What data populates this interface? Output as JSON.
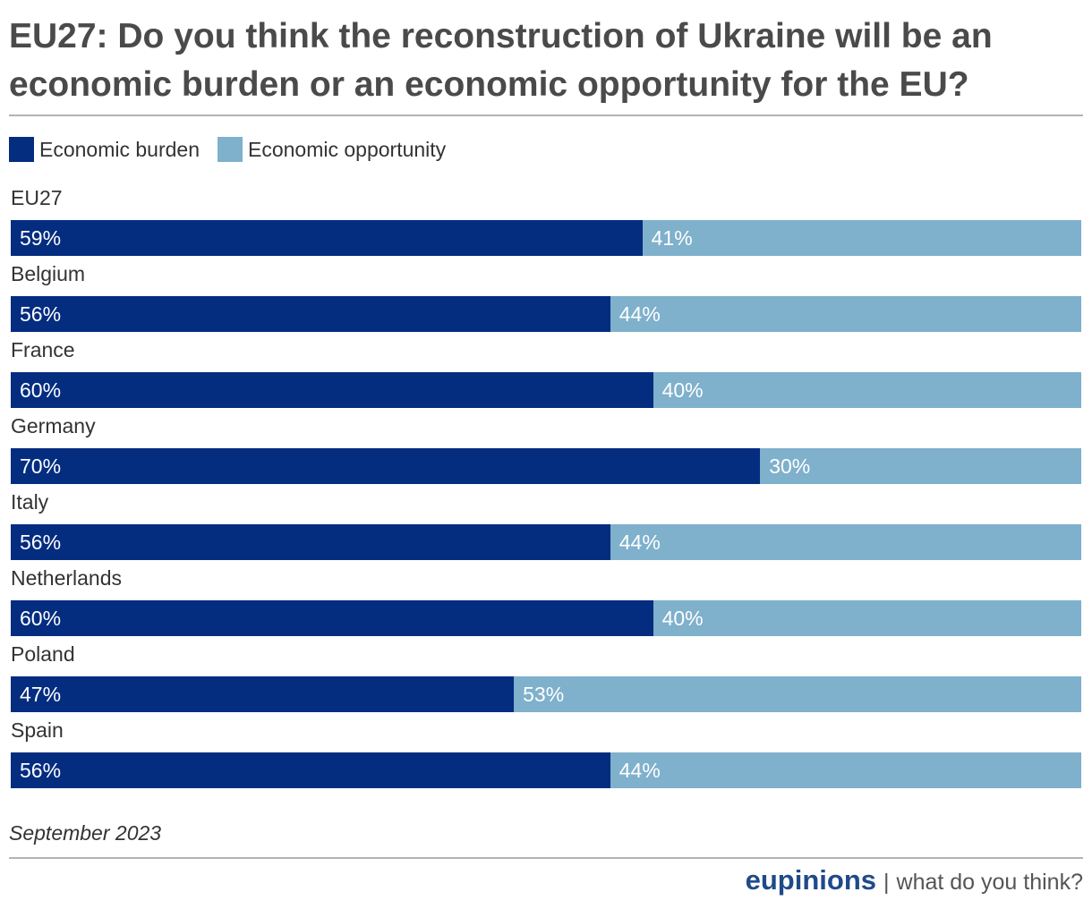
{
  "title": "EU27: Do you think the reconstruction of Ukraine will be an economic burden or an economic opportunity for the EU?",
  "footer": {
    "date": "September 2023",
    "brand": "eupinions",
    "separator": "|",
    "tagline": "what do you think?"
  },
  "colors": {
    "burden": "#042d80",
    "opportunity": "#7fb0cc"
  },
  "chart_data": {
    "type": "bar",
    "orientation": "horizontal",
    "stacked": true,
    "categories": [
      "EU27",
      "Belgium",
      "France",
      "Germany",
      "Italy",
      "Netherlands",
      "Poland",
      "Spain"
    ],
    "series": [
      {
        "name": "Economic burden",
        "values": [
          59,
          56,
          60,
          70,
          56,
          60,
          47,
          56
        ],
        "labels": [
          "59%",
          "56%",
          "60%",
          "70%",
          "56%",
          "60%",
          "47%",
          "56%"
        ]
      },
      {
        "name": "Economic opportunity",
        "values": [
          41,
          44,
          40,
          30,
          44,
          40,
          53,
          44
        ],
        "labels": [
          "41%",
          "44%",
          "40%",
          "30%",
          "44%",
          "40%",
          "53%",
          "44%"
        ]
      }
    ],
    "xlim": [
      0,
      100
    ],
    "legend_position": "top-left",
    "grid": false
  }
}
